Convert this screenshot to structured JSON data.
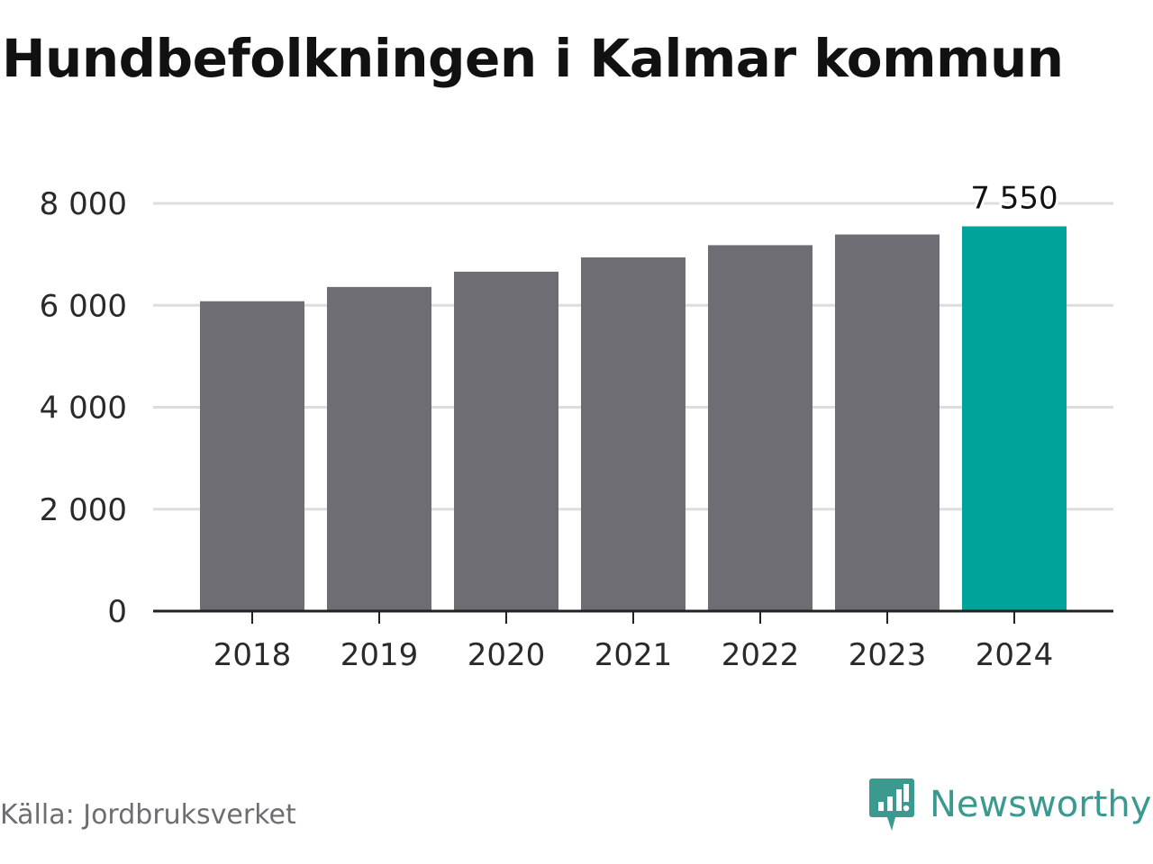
{
  "header": {
    "title": "Hundbefolkningen i Kalmar kommun"
  },
  "footer": {
    "source": "Källa: Jordbruksverket",
    "brand_name": "Newsworthy",
    "brand_icon": "newsworthy-logo-icon"
  },
  "colors": {
    "bar_default": "#6e6d73",
    "bar_highlight": "#00a39a",
    "gridline": "#dddddd",
    "axis": "#222222",
    "brand": "#3a9a8f"
  },
  "chart_data": {
    "type": "bar",
    "categories": [
      "2018",
      "2019",
      "2020",
      "2021",
      "2022",
      "2023",
      "2024"
    ],
    "values": [
      6080,
      6360,
      6660,
      6940,
      7180,
      7390,
      7550
    ],
    "highlight_index": 6,
    "data_labels": [
      {
        "index": 6,
        "text": "7 550"
      }
    ],
    "ylim": [
      0,
      8000
    ],
    "yticks": [
      0,
      2000,
      4000,
      6000,
      8000
    ],
    "ytick_labels": [
      "0",
      "2 000",
      "4 000",
      "6 000",
      "8 000"
    ],
    "title": "Hundbefolkningen i Kalmar kommun",
    "xlabel": "",
    "ylabel": "",
    "grid": true,
    "legend": "none"
  }
}
